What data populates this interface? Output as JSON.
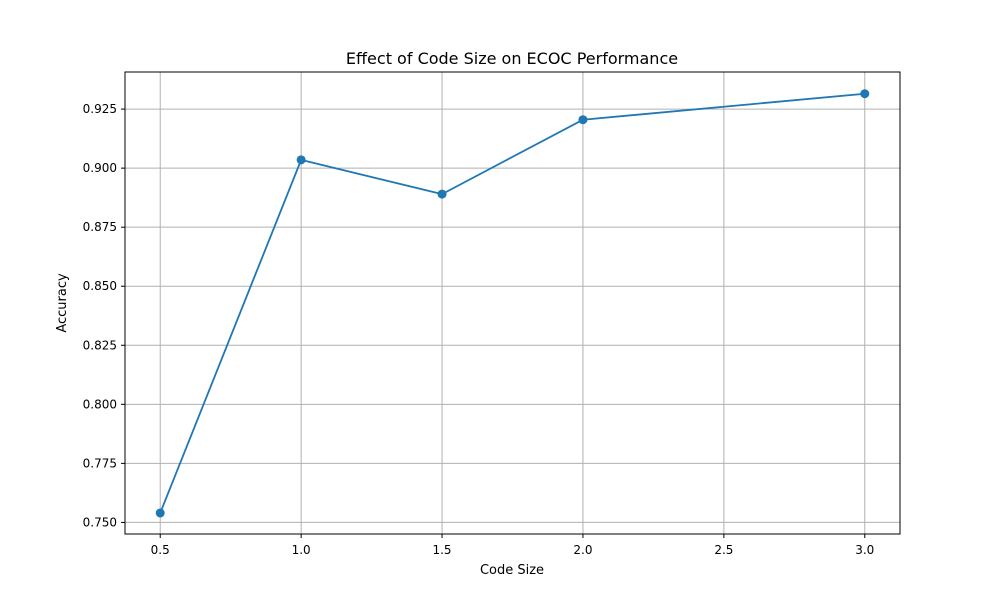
{
  "chart_data": {
    "type": "line",
    "title": "Effect of Code Size on ECOC Performance",
    "xlabel": "Code Size",
    "ylabel": "Accuracy",
    "x": [
      0.5,
      1.0,
      1.5,
      2.0,
      2.5,
      3.0
    ],
    "xticks": [
      0.5,
      1.0,
      1.5,
      2.0,
      2.5,
      3.0
    ],
    "xtick_labels": [
      "0.5",
      "1.0",
      "1.5",
      "2.0",
      "2.5",
      "3.0"
    ],
    "yticks": [
      0.75,
      0.775,
      0.8,
      0.825,
      0.85,
      0.875,
      0.9,
      0.925
    ],
    "ytick_labels": [
      "0.750",
      "0.775",
      "0.800",
      "0.825",
      "0.850",
      "0.875",
      "0.900",
      "0.925"
    ],
    "xlim": [
      0.375,
      3.125
    ],
    "ylim": [
      0.7451,
      0.9407
    ],
    "grid": true,
    "series": [
      {
        "x": [
          0.5,
          1.0,
          1.5,
          2.0,
          3.0
        ],
        "values": [
          0.754,
          0.9035,
          0.889,
          0.9205,
          0.9315
        ],
        "color": "#1f77b4",
        "marker": "circle"
      }
    ]
  }
}
